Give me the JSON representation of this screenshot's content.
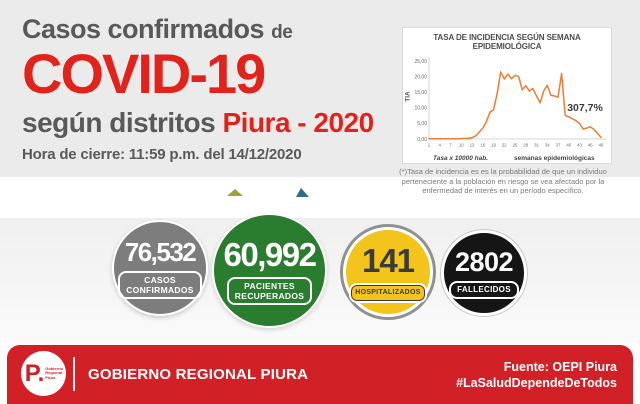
{
  "colors": {
    "accent_red": "#e2231b",
    "footer_bar_red": "#d22027",
    "title_gray": "#58595b",
    "circle_gray": "#7d7d7e",
    "circle_green": "#2a7c2e",
    "circle_yellow": "#f2c41c",
    "circle_black": "#151515",
    "chart_line_orange": "#ED7D31"
  },
  "header": {
    "title_line1": "Casos confirmados",
    "title_line1_small": "de",
    "title_line2": "COVID-19",
    "title_line3_gray": "según distritos",
    "title_line3_red": "Piura - 2020",
    "closing_time": "Hora de cierre: 11:59 p.m. del 14/12/2020"
  },
  "chart_data": {
    "type": "line",
    "title": "TASA DE INCIDENCIA SEGÚN SEMANA EPIDEMIOLÓGICA",
    "xlabel": "semanas epidemiológicas",
    "ylabel": "TIA",
    "note": "Tasa x 10000 hab.",
    "annotation": "307,7%",
    "line_color": "#ED7D31",
    "grid": false,
    "legend": false,
    "ylim": [
      0,
      25
    ],
    "y_tick_values": [
      0,
      5,
      10,
      15,
      20,
      25
    ],
    "y_ticks": [
      "0,00",
      "5,00",
      "10,00",
      "15,00",
      "20,00",
      "25,00"
    ],
    "x_ticks": [
      1,
      4,
      7,
      10,
      13,
      16,
      19,
      22,
      25,
      28,
      31,
      34,
      37,
      40,
      43,
      46,
      49
    ],
    "x": [
      1,
      2,
      3,
      4,
      5,
      6,
      7,
      8,
      9,
      10,
      11,
      12,
      13,
      14,
      15,
      16,
      17,
      18,
      19,
      20,
      21,
      22,
      23,
      24,
      25,
      26,
      27,
      28,
      29,
      30,
      31,
      32,
      33,
      34,
      35,
      36,
      37,
      38,
      39,
      40,
      41,
      42,
      43,
      44,
      45,
      46,
      47,
      48,
      49
    ],
    "values": [
      0.1,
      0.05,
      0.05,
      0.05,
      0.05,
      0.1,
      0.1,
      0.1,
      0.1,
      0.15,
      0.2,
      0.25,
      0.4,
      1.0,
      2.2,
      3.5,
      5.5,
      8.6,
      9.3,
      14.5,
      21.5,
      19.2,
      20.8,
      19.3,
      20.4,
      20.1,
      15.8,
      17.1,
      15.4,
      16.2,
      13.8,
      11.6,
      15.4,
      17.2,
      14.0,
      13.8,
      13.4,
      21.0,
      7.6,
      7.1,
      6.5,
      5.9,
      5.0,
      3.2,
      3.5,
      3.9,
      3.1,
      1.9,
      0.5
    ]
  },
  "footnote": "(*)Tasa de incidencia es es la probabilidad de que un individuo perteneciente a la población en riesgo se vea afectado por la enfermedad de interés en un período específico.",
  "stats": [
    {
      "value": "76,532",
      "label_lines": [
        "CASOS",
        "CONFIRMADOS"
      ]
    },
    {
      "value": "60,992",
      "label_lines": [
        "PACIENTES",
        "RECUPERADOS"
      ]
    },
    {
      "value": "141",
      "label_lines": [
        "HOSPITALIZADOS"
      ]
    },
    {
      "value": "2802",
      "label_lines": [
        "FALLECIDOS"
      ]
    }
  ],
  "footer": {
    "logo_text": "P.",
    "logo_subtext": "Gobierno Regional Piura",
    "org_name": "GOBIERNO REGIONAL PIURA",
    "source": "Fuente: OEPI Piura",
    "hashtag": "#LaSaludDependeDeTodos"
  }
}
